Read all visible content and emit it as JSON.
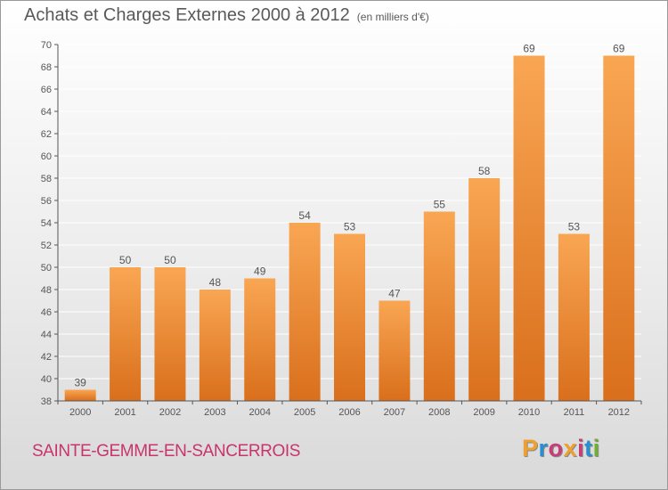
{
  "title": "Achats et Charges Externes 2000 à 2012",
  "subtitle": "(en milliers d'€)",
  "commune": "SAINTE-GEMME-EN-SANCERROIS",
  "logo": {
    "letters": [
      "P",
      "r",
      "o",
      "x",
      "i",
      "t",
      "i"
    ],
    "colors": [
      "#f0a030",
      "#2a8fd0",
      "#c83c78",
      "#f0a030",
      "#c83c78",
      "#2a8fd0",
      "#6fb030"
    ]
  },
  "colors": {
    "bar_top": "#f9a653",
    "bar_bottom": "#d96f1c",
    "axis": "#555555",
    "grid": "#ffffff",
    "commune": "#c9346c"
  },
  "chart_data": {
    "type": "bar",
    "categories": [
      "2000",
      "2001",
      "2002",
      "2003",
      "2004",
      "2005",
      "2006",
      "2007",
      "2008",
      "2009",
      "2010",
      "2011",
      "2012"
    ],
    "values": [
      39,
      50,
      50,
      48,
      49,
      54,
      53,
      47,
      55,
      58,
      69,
      53,
      69
    ],
    "ylim": [
      38,
      70
    ],
    "yticks": [
      38,
      40,
      42,
      44,
      46,
      48,
      50,
      52,
      54,
      56,
      58,
      60,
      62,
      64,
      66,
      68,
      70
    ],
    "grid": true,
    "data_labels": true
  }
}
